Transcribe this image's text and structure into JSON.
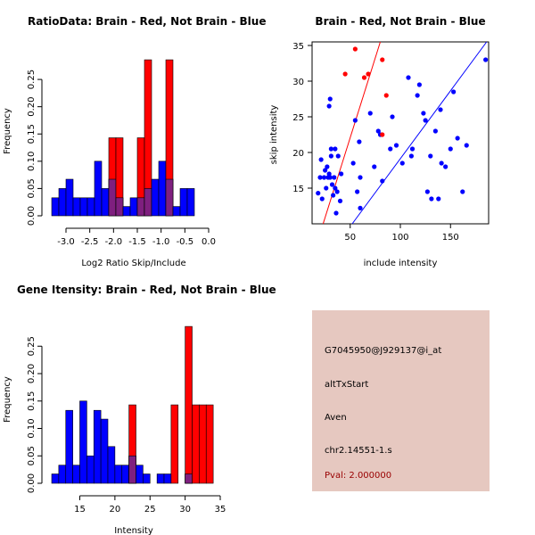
{
  "colors": {
    "brain": "#ff0000",
    "not_brain": "#0000ff",
    "overlap": "#7f1f7f",
    "panel_bg": "#e6c8c0",
    "pval": "#990000"
  },
  "chart_data": [
    {
      "type": "bar",
      "title": "RatioData: Brain - Red, Not Brain - Blue",
      "xlabel": "Log2 Ratio Skip/Include",
      "ylabel": "Frequency",
      "xlim": [
        -3.3,
        0.15
      ],
      "ylim": [
        0,
        0.3
      ],
      "xticks": [
        -3.0,
        -2.5,
        -2.0,
        -1.5,
        -1.0,
        -0.5,
        0.0
      ],
      "xtick_labels": [
        "-3.0",
        "-2.5",
        "-2.0",
        "-1.5",
        "-1.0",
        "-0.5",
        "0.0"
      ],
      "yticks": [
        0.0,
        0.05,
        0.1,
        0.15,
        0.2,
        0.25
      ],
      "ytick_labels": [
        "0.00",
        "0.05",
        "0.10",
        "0.15",
        "0.20",
        "0.25"
      ],
      "bin_start": -3.3,
      "bin_width": 0.15,
      "series": [
        {
          "name": "Not Brain",
          "color": "blue",
          "values": [
            0.033,
            0.05,
            0.067,
            0.033,
            0.033,
            0.033,
            0.1,
            0.05,
            0.067,
            0.033,
            0.017,
            0.033,
            0.033,
            0.05,
            0.067,
            0.1,
            0.067,
            0.017,
            0.05,
            0.05,
            0.0,
            0.0,
            0.0
          ]
        },
        {
          "name": "Brain",
          "color": "red",
          "values": [
            0,
            0,
            0,
            0,
            0,
            0,
            0,
            0,
            0.143,
            0.143,
            0,
            0,
            0.143,
            0.286,
            0,
            0,
            0.286,
            0,
            0,
            0,
            0,
            0,
            0
          ]
        }
      ]
    },
    {
      "type": "scatter",
      "title": "Brain - Red, Not Brain - Blue",
      "xlabel": "include intensity",
      "ylabel": "skip intensity",
      "xlim": [
        12,
        188
      ],
      "ylim": [
        10,
        35.5
      ],
      "xticks": [
        50,
        100,
        150
      ],
      "xtick_labels": [
        "50",
        "100",
        "150"
      ],
      "yticks": [
        15,
        20,
        25,
        30,
        35
      ],
      "ytick_labels": [
        "15",
        "20",
        "25",
        "30",
        "35"
      ],
      "series": [
        {
          "name": "Not Brain",
          "color": "blue",
          "points": [
            [
              18,
              14.3
            ],
            [
              20,
              16.5
            ],
            [
              21,
              19
            ],
            [
              22,
              13.5
            ],
            [
              24,
              16.5
            ],
            [
              25,
              17.5
            ],
            [
              26,
              15
            ],
            [
              27,
              18
            ],
            [
              28,
              16.5
            ],
            [
              29,
              17
            ],
            [
              30,
              16.5
            ],
            [
              29,
              26.5
            ],
            [
              30,
              27.5
            ],
            [
              31,
              20.5
            ],
            [
              31,
              19.5
            ],
            [
              32,
              15.5
            ],
            [
              33,
              14
            ],
            [
              34,
              16.5
            ],
            [
              35,
              20.5
            ],
            [
              35,
              15
            ],
            [
              36,
              11.5
            ],
            [
              37,
              14.5
            ],
            [
              38,
              19.5
            ],
            [
              40,
              13.2
            ],
            [
              41,
              17
            ],
            [
              53,
              18.5
            ],
            [
              55,
              24.5
            ],
            [
              57,
              14.5
            ],
            [
              59,
              21.5
            ],
            [
              60,
              16.5
            ],
            [
              60,
              12.2
            ],
            [
              70,
              25.5
            ],
            [
              74,
              18
            ],
            [
              78,
              23
            ],
            [
              80,
              22.5
            ],
            [
              82,
              16
            ],
            [
              90,
              20.5
            ],
            [
              92,
              25
            ],
            [
              96,
              21
            ],
            [
              102,
              18.5
            ],
            [
              108,
              30.5
            ],
            [
              111,
              19.5
            ],
            [
              112,
              20.5
            ],
            [
              117,
              28
            ],
            [
              119,
              29.5
            ],
            [
              123,
              25.5
            ],
            [
              125,
              24.5
            ],
            [
              127,
              14.5
            ],
            [
              130,
              19.5
            ],
            [
              131,
              13.5
            ],
            [
              135,
              23
            ],
            [
              138,
              13.5
            ],
            [
              140,
              26
            ],
            [
              141,
              18.5
            ],
            [
              145,
              18
            ],
            [
              150,
              20.5
            ],
            [
              153,
              28.5
            ],
            [
              157,
              22
            ],
            [
              162,
              14.5
            ],
            [
              166,
              21
            ],
            [
              185,
              33
            ]
          ]
        },
        {
          "name": "Brain",
          "color": "red",
          "points": [
            [
              45,
              31
            ],
            [
              55,
              34.5
            ],
            [
              64,
              30.5
            ],
            [
              68,
              31
            ],
            [
              82,
              33
            ],
            [
              86,
              28
            ],
            [
              82,
              22.5
            ]
          ]
        }
      ],
      "fit_lines": [
        {
          "name": "Brain fit",
          "color": "red",
          "x": [
            23,
            80
          ],
          "y": [
            10,
            35.5
          ]
        },
        {
          "name": "Not Brain fit",
          "color": "blue",
          "x": [
            52,
            186
          ],
          "y": [
            10,
            35.5
          ]
        }
      ]
    },
    {
      "type": "bar",
      "title": "Gene Itensity: Brain - Red, Not Brain - Blue",
      "xlabel": "Intensity",
      "ylabel": "Frequency",
      "xlim": [
        11,
        35
      ],
      "ylim": [
        0,
        0.3
      ],
      "xticks": [
        15,
        20,
        25,
        30,
        35
      ],
      "xtick_labels": [
        "15",
        "20",
        "25",
        "30",
        "35"
      ],
      "yticks": [
        0.0,
        0.05,
        0.1,
        0.15,
        0.2,
        0.25
      ],
      "ytick_labels": [
        "0.00",
        "0.05",
        "0.10",
        "0.15",
        "0.20",
        "0.25"
      ],
      "bin_start": 11,
      "bin_width": 1,
      "series": [
        {
          "name": "Not Brain",
          "color": "blue",
          "values": [
            0.017,
            0.033,
            0.133,
            0.033,
            0.15,
            0.05,
            0.133,
            0.117,
            0.067,
            0.033,
            0.033,
            0.05,
            0.033,
            0.017,
            0.0,
            0.017,
            0.017,
            0.0,
            0.0,
            0.017,
            0.0,
            0.0,
            0.0,
            0.0
          ]
        },
        {
          "name": "Brain",
          "color": "red",
          "values": [
            0,
            0,
            0,
            0,
            0,
            0,
            0,
            0,
            0,
            0,
            0,
            0.143,
            0,
            0,
            0,
            0,
            0,
            0.143,
            0,
            0.286,
            0.143,
            0.143,
            0.143,
            0
          ]
        }
      ]
    }
  ],
  "info_panel": {
    "probe_id": "G7045950@J929137@i_at",
    "event_type": "altTxStart",
    "gene": "Aven",
    "location": "chr2.14551-1.s",
    "pval": "Pval: 2.000000"
  }
}
